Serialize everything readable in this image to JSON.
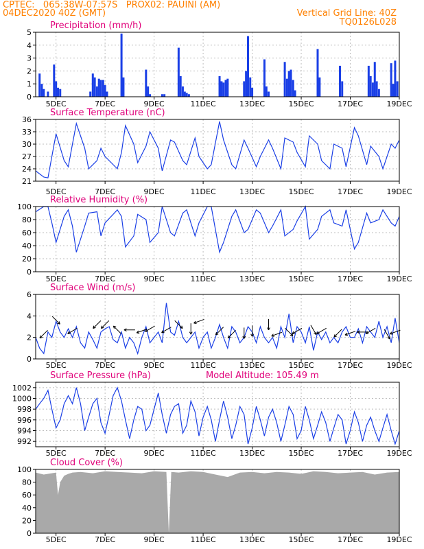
{
  "header": {
    "line1": "CPTEC:   065:38W-07:57S   PROX02: PAUINI (AM)",
    "line2": "04DEC2020 40Z (GMT)",
    "right1": "Vertical Grid Line: 40Z",
    "right2": "TQ0126L028"
  },
  "colors": {
    "title": "#e0007a",
    "header": "#ff8000",
    "line": "#1a3fe6",
    "bar": "#1a3fe6",
    "cloud": "#a9a9a9"
  },
  "chart_data": [
    {
      "type": "bar",
      "title": "Precipitation (mm/h)",
      "ylim": [
        0,
        5
      ],
      "yticks": [
        "0",
        "1",
        "2",
        "3",
        "4",
        "5"
      ],
      "xticks": [
        "5DEC",
        "7DEC",
        "9DEC",
        "11DEC",
        "13DEC",
        "15DEC",
        "17DEC",
        "19DEC"
      ],
      "x_start": 4.17,
      "x_end": 19.0,
      "grid": true,
      "series": [
        {
          "x": [
            4.33,
            4.42,
            4.5,
            4.67,
            4.92,
            5.0,
            5.08,
            5.17,
            6.4,
            6.5,
            6.58,
            6.67,
            6.75,
            6.83,
            6.92,
            7.0,
            7.08,
            7.67,
            7.75,
            8.67,
            8.75,
            8.83,
            9.33,
            9.42,
            10.0,
            10.08,
            10.17,
            10.25,
            10.33,
            10.42,
            11.67,
            11.75,
            11.83,
            11.92,
            12.0,
            12.67,
            12.75,
            12.83,
            12.92,
            13.0,
            13.5,
            13.58,
            13.67,
            14.33,
            14.42,
            14.5,
            14.58,
            14.67,
            14.75,
            15.67,
            15.75,
            16.58,
            16.67,
            17.75,
            17.83,
            17.92,
            18.0,
            18.08,
            18.17,
            18.67,
            18.75,
            18.83,
            18.92
          ],
          "values": [
            1.8,
            1.0,
            0.6,
            0.4,
            2.5,
            1.2,
            0.7,
            0.6,
            0.4,
            1.8,
            1.5,
            0.8,
            1.4,
            1.3,
            1.3,
            0.9,
            0.4,
            4.9,
            1.5,
            2.1,
            0.8,
            0.2,
            0.2,
            0.2,
            3.8,
            1.6,
            0.8,
            0.4,
            0.3,
            0.2,
            1.6,
            1.2,
            1.1,
            1.3,
            1.4,
            1.2,
            2.0,
            4.7,
            1.5,
            0.7,
            2.9,
            0.8,
            0.4,
            2.7,
            1.4,
            2.0,
            2.1,
            1.3,
            0.5,
            3.7,
            1.5,
            2.4,
            1.2,
            2.4,
            1.6,
            1.1,
            2.7,
            1.2,
            0.6,
            2.6,
            1.0,
            2.8,
            1.2
          ]
        }
      ]
    },
    {
      "type": "line",
      "title": "Surface Temperature (nC)",
      "ylim": [
        21,
        36
      ],
      "yticks": [
        "21",
        "24",
        "27",
        "30",
        "33",
        "36"
      ],
      "xticks": [
        "5DEC",
        "7DEC",
        "9DEC",
        "11DEC",
        "13DEC",
        "15DEC",
        "17DEC",
        "19DEC"
      ],
      "x_start": 4.17,
      "x_end": 19.0,
      "grid": true,
      "series": [
        {
          "x": [
            4.17,
            4.5,
            4.67,
            4.83,
            5.0,
            5.33,
            5.5,
            5.67,
            5.83,
            6.17,
            6.33,
            6.67,
            6.83,
            7.0,
            7.5,
            7.67,
            7.83,
            8.17,
            8.33,
            8.67,
            8.83,
            9.17,
            9.33,
            9.67,
            9.83,
            10.17,
            10.33,
            10.67,
            10.83,
            11.17,
            11.33,
            11.67,
            11.83,
            12.17,
            12.33,
            12.67,
            12.83,
            13.17,
            13.33,
            13.67,
            13.83,
            14.17,
            14.33,
            14.67,
            14.83,
            15.17,
            15.33,
            15.67,
            15.83,
            16.17,
            16.33,
            16.67,
            16.83,
            17.17,
            17.33,
            17.67,
            17.83,
            18.17,
            18.33,
            18.67,
            18.83,
            19.0
          ],
          "values": [
            23.5,
            22.0,
            21.8,
            27.0,
            32.5,
            26.0,
            24.5,
            30.0,
            35.0,
            29.0,
            24.0,
            26.0,
            29.0,
            27.0,
            24.0,
            28.0,
            34.5,
            30.0,
            25.5,
            29.5,
            33.0,
            29.0,
            23.5,
            31.0,
            30.5,
            26.0,
            25.0,
            31.5,
            27.0,
            24.0,
            25.0,
            35.5,
            31.0,
            25.0,
            24.0,
            31.0,
            29.0,
            24.5,
            27.0,
            31.0,
            29.0,
            24.0,
            31.5,
            30.5,
            28.0,
            24.5,
            32.0,
            30.0,
            26.0,
            24.0,
            30.0,
            29.0,
            24.5,
            34.0,
            32.0,
            25.0,
            29.5,
            27.0,
            24.0,
            30.0,
            29.0,
            31.0
          ]
        }
      ]
    },
    {
      "type": "line",
      "title": "Relative Humidity (%)",
      "ylim": [
        0,
        100
      ],
      "yticks": [
        "0",
        "20",
        "40",
        "60",
        "80",
        "100"
      ],
      "xticks": [
        "5DEC",
        "7DEC",
        "9DEC",
        "11DEC",
        "13DEC",
        "15DEC",
        "17DEC",
        "19DEC"
      ],
      "x_start": 4.17,
      "x_end": 19.0,
      "grid": true,
      "series": [
        {
          "x": [
            4.17,
            4.5,
            4.67,
            4.83,
            5.0,
            5.33,
            5.5,
            5.67,
            5.83,
            6.17,
            6.33,
            6.67,
            6.83,
            7.0,
            7.5,
            7.67,
            7.83,
            8.17,
            8.33,
            8.67,
            8.83,
            9.17,
            9.33,
            9.67,
            9.83,
            10.17,
            10.33,
            10.67,
            10.83,
            11.17,
            11.33,
            11.67,
            11.83,
            12.17,
            12.33,
            12.67,
            12.83,
            13.17,
            13.33,
            13.67,
            13.83,
            14.17,
            14.33,
            14.67,
            14.83,
            15.17,
            15.33,
            15.67,
            15.83,
            16.17,
            16.33,
            16.67,
            16.83,
            17.17,
            17.33,
            17.67,
            17.83,
            18.17,
            18.33,
            18.67,
            18.83,
            19.0
          ],
          "values": [
            92,
            100,
            100,
            75,
            45,
            85,
            95,
            70,
            30,
            70,
            90,
            92,
            55,
            75,
            95,
            85,
            38,
            55,
            88,
            80,
            45,
            60,
            100,
            60,
            55,
            90,
            95,
            55,
            75,
            100,
            100,
            30,
            45,
            85,
            95,
            60,
            65,
            95,
            90,
            60,
            70,
            95,
            55,
            65,
            78,
            100,
            50,
            65,
            85,
            95,
            75,
            70,
            95,
            35,
            45,
            90,
            75,
            80,
            95,
            75,
            70,
            85
          ]
        }
      ]
    },
    {
      "type": "line",
      "title": "Surface Wind (m/s)",
      "ylim": [
        0,
        6
      ],
      "yticks": [
        "0",
        "2",
        "4",
        "6"
      ],
      "xticks": [
        "5DEC",
        "7DEC",
        "9DEC",
        "11DEC",
        "13DEC",
        "15DEC",
        "17DEC",
        "19DEC"
      ],
      "x_start": 4.17,
      "x_end": 19.0,
      "grid": true,
      "series": [
        {
          "x": [
            4.17,
            4.33,
            4.5,
            4.67,
            4.83,
            5.0,
            5.17,
            5.33,
            5.5,
            5.67,
            5.83,
            6.0,
            6.17,
            6.33,
            6.5,
            6.67,
            6.83,
            7.0,
            7.17,
            7.33,
            7.5,
            7.67,
            7.83,
            8.0,
            8.17,
            8.33,
            8.5,
            8.67,
            8.83,
            9.0,
            9.17,
            9.33,
            9.5,
            9.67,
            9.83,
            10.0,
            10.17,
            10.33,
            10.5,
            10.67,
            10.83,
            11.0,
            11.17,
            11.33,
            11.5,
            11.67,
            11.83,
            12.0,
            12.17,
            12.33,
            12.5,
            12.67,
            12.83,
            13.0,
            13.17,
            13.33,
            13.5,
            13.67,
            13.83,
            14.0,
            14.17,
            14.33,
            14.5,
            14.67,
            14.83,
            15.0,
            15.17,
            15.33,
            15.5,
            15.67,
            15.83,
            16.0,
            16.17,
            16.33,
            16.5,
            16.67,
            16.83,
            17.0,
            17.17,
            17.33,
            17.5,
            17.67,
            17.83,
            18.0,
            18.17,
            18.33,
            18.5,
            18.67,
            18.83,
            19.0
          ],
          "values": [
            2.0,
            1.0,
            0.5,
            2.5,
            2.0,
            3.5,
            2.5,
            2.0,
            2.8,
            2.0,
            3.0,
            1.5,
            1.0,
            2.5,
            1.8,
            1.0,
            2.5,
            2.8,
            3.0,
            1.8,
            1.5,
            2.5,
            1.0,
            2.0,
            1.5,
            0.5,
            2.0,
            3.0,
            1.5,
            2.0,
            2.5,
            1.5,
            5.2,
            2.5,
            2.2,
            3.5,
            2.0,
            1.5,
            2.0,
            2.5,
            1.0,
            2.0,
            2.5,
            1.0,
            2.0,
            3.2,
            2.0,
            1.0,
            3.0,
            2.5,
            1.5,
            2.0,
            3.0,
            2.5,
            1.5,
            3.0,
            2.0,
            1.5,
            2.0,
            1.0,
            3.0,
            2.0,
            4.2,
            1.5,
            3.0,
            2.5,
            1.5,
            3.0,
            0.8,
            2.5,
            1.8,
            2.5,
            1.5,
            2.0,
            1.5,
            2.5,
            3.0,
            2.0,
            2.0,
            2.8,
            1.5,
            3.0,
            2.5,
            2.0,
            3.5,
            2.0,
            3.0,
            1.5,
            3.8,
            1.5
          ]
        }
      ],
      "wind_arrows": {
        "x": [
          4.5,
          5.0,
          5.67,
          6.67,
          7.0,
          7.5,
          8.0,
          8.5,
          8.83,
          9.5,
          10.0,
          10.5,
          10.83,
          11.67,
          12.17,
          12.67,
          13.0,
          13.67,
          14.0,
          14.5,
          14.83,
          15.5,
          15.83,
          16.5,
          17.0,
          17.5,
          17.83,
          18.5,
          18.83
        ],
        "y": [
          2.3,
          3.6,
          2.6,
          3.2,
          3.2,
          2.7,
          2.7,
          2.6,
          2.8,
          2.7,
          3.2,
          2.8,
          3.5,
          2.6,
          2.3,
          2.4,
          2.6,
          3.2,
          2.3,
          2.5,
          2.6,
          2.7,
          2.6,
          2.4,
          2.4,
          2.5,
          2.6,
          2.3,
          2.5
        ],
        "angle_deg": [
          225,
          315,
          210,
          225,
          225,
          135,
          180,
          200,
          210,
          210,
          315,
          270,
          200,
          225,
          225,
          270,
          270,
          270,
          200,
          315,
          210,
          300,
          210,
          225,
          200,
          180,
          210,
          300,
          200
        ]
      }
    },
    {
      "type": "line",
      "title": "Surface Pressure (hPa)",
      "annotation": "Model Altitude: 105.49  m",
      "ylim": [
        991,
        1003
      ],
      "yticks": [
        "992",
        "994",
        "996",
        "998",
        "1000",
        "1002"
      ],
      "xticks": [
        "5DEC",
        "7DEC",
        "9DEC",
        "11DEC",
        "13DEC",
        "15DEC",
        "17DEC",
        "19DEC"
      ],
      "x_start": 4.17,
      "x_end": 19.0,
      "grid": true,
      "series": [
        {
          "x": [
            4.17,
            4.33,
            4.5,
            4.67,
            4.83,
            5.0,
            5.17,
            5.33,
            5.5,
            5.67,
            5.83,
            6.0,
            6.17,
            6.33,
            6.5,
            6.67,
            6.83,
            7.0,
            7.17,
            7.33,
            7.5,
            7.67,
            7.83,
            8.0,
            8.17,
            8.33,
            8.5,
            8.67,
            8.83,
            9.0,
            9.17,
            9.33,
            9.5,
            9.67,
            9.83,
            10.0,
            10.17,
            10.33,
            10.5,
            10.67,
            10.83,
            11.0,
            11.17,
            11.33,
            11.5,
            11.67,
            11.83,
            12.0,
            12.17,
            12.33,
            12.5,
            12.67,
            12.83,
            13.0,
            13.17,
            13.33,
            13.5,
            13.67,
            13.83,
            14.0,
            14.17,
            14.33,
            14.5,
            14.67,
            14.83,
            15.0,
            15.17,
            15.33,
            15.5,
            15.67,
            15.83,
            16.0,
            16.17,
            16.33,
            16.5,
            16.67,
            16.83,
            17.0,
            17.17,
            17.33,
            17.5,
            17.67,
            17.83,
            18.0,
            18.17,
            18.33,
            18.5,
            18.67,
            18.83,
            19.0
          ],
          "values": [
            998.0,
            999.0,
            1000.0,
            1001.5,
            998.0,
            994.5,
            996.0,
            999.0,
            1000.5,
            999.0,
            1002.0,
            999.0,
            994.0,
            996.5,
            999.0,
            1000.0,
            995.5,
            993.5,
            997.0,
            1000.5,
            1002.0,
            999.5,
            996.0,
            992.5,
            996.0,
            998.5,
            998.0,
            994.0,
            995.0,
            998.0,
            1001.0,
            997.0,
            993.5,
            997.0,
            998.5,
            999.0,
            993.5,
            995.0,
            999.5,
            997.5,
            993.0,
            996.5,
            998.5,
            996.0,
            992.0,
            996.0,
            999.5,
            996.5,
            992.5,
            995.0,
            998.5,
            997.0,
            991.5,
            994.5,
            998.5,
            996.0,
            993.0,
            996.5,
            998.0,
            995.5,
            992.0,
            995.0,
            998.5,
            997.0,
            992.5,
            994.0,
            998.5,
            996.0,
            992.5,
            995.0,
            997.5,
            995.5,
            992.0,
            994.5,
            997.0,
            996.0,
            991.5,
            994.0,
            997.5,
            995.5,
            992.0,
            995.0,
            996.5,
            994.0,
            992.0,
            994.5,
            997.0,
            994.0,
            991.5,
            994.0
          ]
        }
      ]
    },
    {
      "type": "area",
      "title": "Cloud Cover (%)",
      "ylim": [
        0,
        100
      ],
      "yticks": [
        "0",
        "20",
        "40",
        "60",
        "80",
        "100"
      ],
      "xticks": [
        "5DEC",
        "7DEC",
        "9DEC",
        "11DEC",
        "13DEC",
        "15DEC",
        "17DEC",
        "19DEC"
      ],
      "x_start": 4.17,
      "x_end": 19.0,
      "grid": true,
      "series": [
        {
          "x": [
            4.17,
            4.5,
            5.0,
            5.08,
            5.17,
            5.33,
            5.5,
            5.67,
            6.0,
            6.5,
            7.0,
            7.5,
            8.0,
            8.5,
            9.0,
            9.5,
            9.6,
            9.7,
            10.0,
            10.5,
            11.0,
            11.5,
            12.0,
            12.5,
            13.0,
            13.5,
            14.0,
            14.5,
            15.0,
            15.5,
            16.0,
            16.5,
            17.0,
            17.5,
            18.0,
            18.5,
            19.0
          ],
          "values": [
            95,
            92,
            95,
            60,
            80,
            90,
            93,
            95,
            96,
            94,
            97,
            96,
            95,
            94,
            97,
            96,
            0,
            96,
            95,
            97,
            96,
            92,
            88,
            95,
            96,
            94,
            96,
            95,
            93,
            97,
            96,
            94,
            95,
            96,
            92,
            95,
            96
          ]
        }
      ]
    }
  ]
}
